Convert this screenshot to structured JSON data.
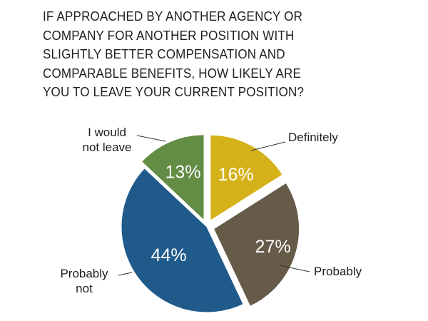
{
  "title_lines": [
    "IF APPROACHED BY ANOTHER AGENCY OR",
    "COMPANY FOR ANOTHER POSITION WITH",
    "SLIGHTLY BETTER COMPENSATION AND",
    "COMPARABLE BENEFITS, HOW LIKELY ARE",
    "YOU TO LEAVE YOUR CURRENT POSITION?"
  ],
  "chart_data": {
    "type": "pie",
    "title": "IF APPROACHED BY ANOTHER AGENCY OR COMPANY FOR ANOTHER POSITION WITH SLIGHTLY BETTER COMPENSATION AND COMPARABLE BENEFITS, HOW LIKELY ARE YOU TO LEAVE YOUR CURRENT POSITION?",
    "slices": [
      {
        "label": "Definitely",
        "value": 16,
        "value_label": "16%",
        "color": "#d5b21a",
        "exploded": true
      },
      {
        "label": "Probably",
        "value": 27,
        "value_label": "27%",
        "color": "#665a49",
        "exploded": true
      },
      {
        "label": "Probably not",
        "value": 44,
        "value_label": "44%",
        "color": "#1f5a8b",
        "exploded": false
      },
      {
        "label": "I would not leave",
        "value": 13,
        "value_label": "13%",
        "color": "#638c45",
        "exploded": true
      }
    ],
    "start": "12 o'clock",
    "direction": "clockwise",
    "legend": "none (callout labels with leader lines)"
  }
}
